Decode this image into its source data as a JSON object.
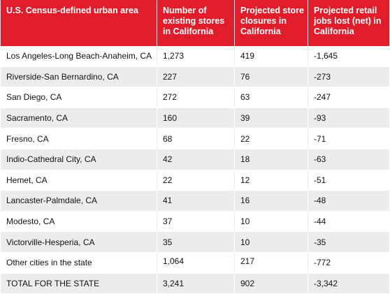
{
  "headers": [
    "U.S. Census-defined urban area",
    "Number of existing stores in California",
    "Projected store closures in California",
    "Projected retail jobs lost (net) in California"
  ],
  "rows": [
    {
      "area": "Los Angeles-Long Beach-Anaheim, CA",
      "stores": "1,273",
      "closures": "419",
      "jobs": "-1,645"
    },
    {
      "area": "Riverside-San Bernardino, CA",
      "stores": "227",
      "closures": "76",
      "jobs": "-273"
    },
    {
      "area": "San Diego, CA",
      "stores": "272",
      "closures": "63",
      "jobs": "-247"
    },
    {
      "area": "Sacramento, CA",
      "stores": "160",
      "closures": "39",
      "jobs": "-93"
    },
    {
      "area": "Fresno, CA",
      "stores": "68",
      "closures": "22",
      "jobs": "-71"
    },
    {
      "area": "Indio-Cathedral City, CA",
      "stores": "42",
      "closures": "18",
      "jobs": "-63"
    },
    {
      "area": "Hemet, CA",
      "stores": "22",
      "closures": "12",
      "jobs": "-51"
    },
    {
      "area": "Lancaster-Palmdale, CA",
      "stores": "41",
      "closures": "16",
      "jobs": "-48"
    },
    {
      "area": "Modesto, CA",
      "stores": "37",
      "closures": "10",
      "jobs": "-44"
    },
    {
      "area": "Victorville-Hesperia, CA",
      "stores": "35",
      "closures": "10",
      "jobs": "-35"
    },
    {
      "area": "Other cities in the state",
      "stores": "1,064",
      "closures": "217",
      "jobs": "-772"
    },
    {
      "area": "TOTAL FOR THE STATE",
      "stores": "3,241",
      "closures": "902",
      "jobs": "-3,342"
    }
  ],
  "colors": {
    "header_bg": "#e11d2c",
    "stripe_bg": "#ececec"
  }
}
